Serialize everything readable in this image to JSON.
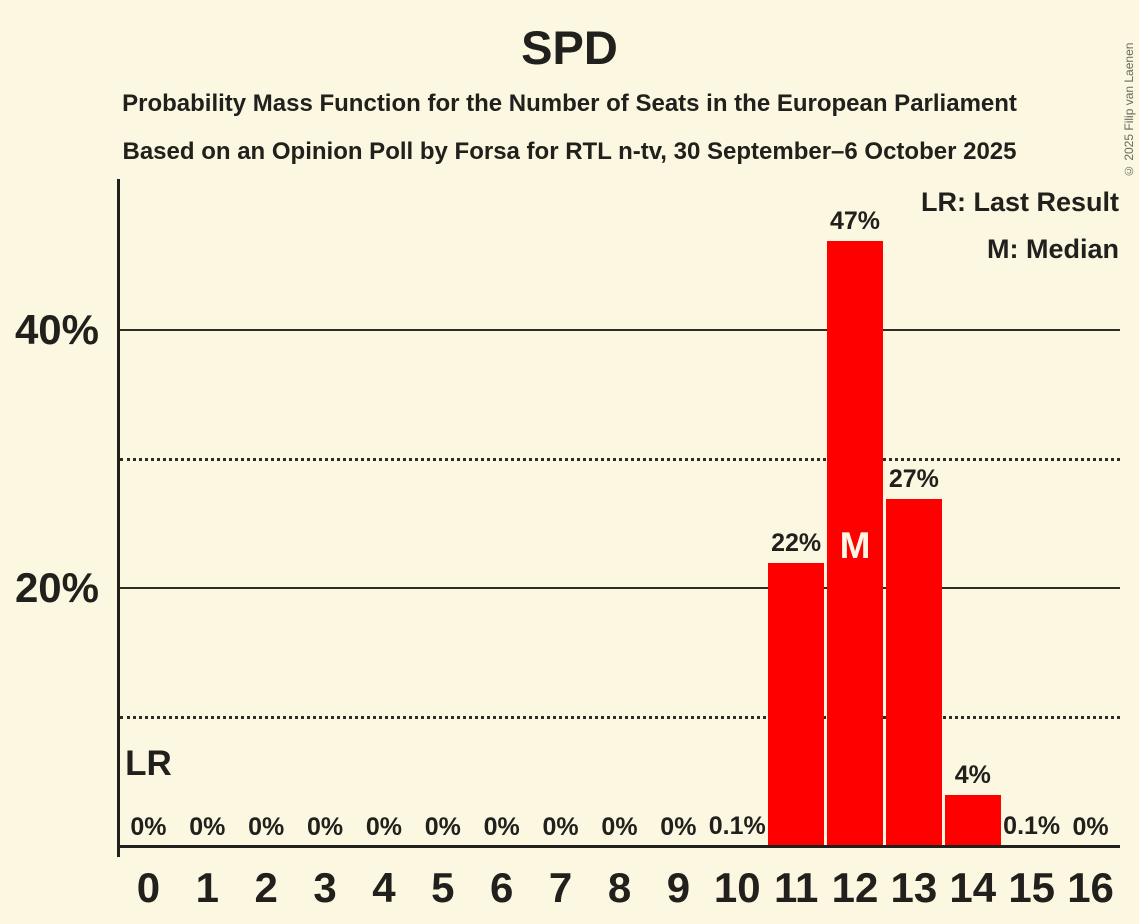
{
  "header": {
    "title": "SPD",
    "subtitle1": "Probability Mass Function for the Number of Seats in the European Parliament",
    "subtitle2": "Based on an Opinion Poll by Forsa for RTL n-tv, 30 September–6 October 2025"
  },
  "legend": {
    "items": [
      {
        "label": "LR: Last Result"
      },
      {
        "label": "M: Median"
      }
    ]
  },
  "copyright": "© 2025 Filip van Laenen",
  "colors": {
    "background": "#FBF7E1",
    "bar": "#FF0000",
    "text": "#21201C",
    "gridline": "#2E2C27",
    "median_label": "#FDF8E5"
  },
  "chart_data": {
    "type": "bar",
    "title": "SPD",
    "categories": [
      "0",
      "1",
      "2",
      "3",
      "4",
      "5",
      "6",
      "7",
      "8",
      "9",
      "10",
      "11",
      "12",
      "13",
      "14",
      "15",
      "16"
    ],
    "values": [
      0,
      0,
      0,
      0,
      0,
      0,
      0,
      0,
      0,
      0,
      0.1,
      22,
      47,
      27,
      4,
      0.1,
      0
    ],
    "bar_labels": [
      "0%",
      "0%",
      "0%",
      "0%",
      "0%",
      "0%",
      "0%",
      "0%",
      "0%",
      "0%",
      "0.1%",
      "22%",
      "47%",
      "27%",
      "4%",
      "0.1%",
      "0%"
    ],
    "ylim": [
      0,
      50
    ],
    "yticks": [
      {
        "pct": 10,
        "label": "",
        "style": "dotted"
      },
      {
        "pct": 20,
        "label": "20%",
        "style": "solid"
      },
      {
        "pct": 30,
        "label": "",
        "style": "dotted"
      },
      {
        "pct": 40,
        "label": "40%",
        "style": "solid"
      }
    ],
    "grid": "horizontal",
    "legend_position": "top-right",
    "median_category": "12",
    "median_marker": "M",
    "last_result_category": "0",
    "last_result_marker": "LR"
  }
}
